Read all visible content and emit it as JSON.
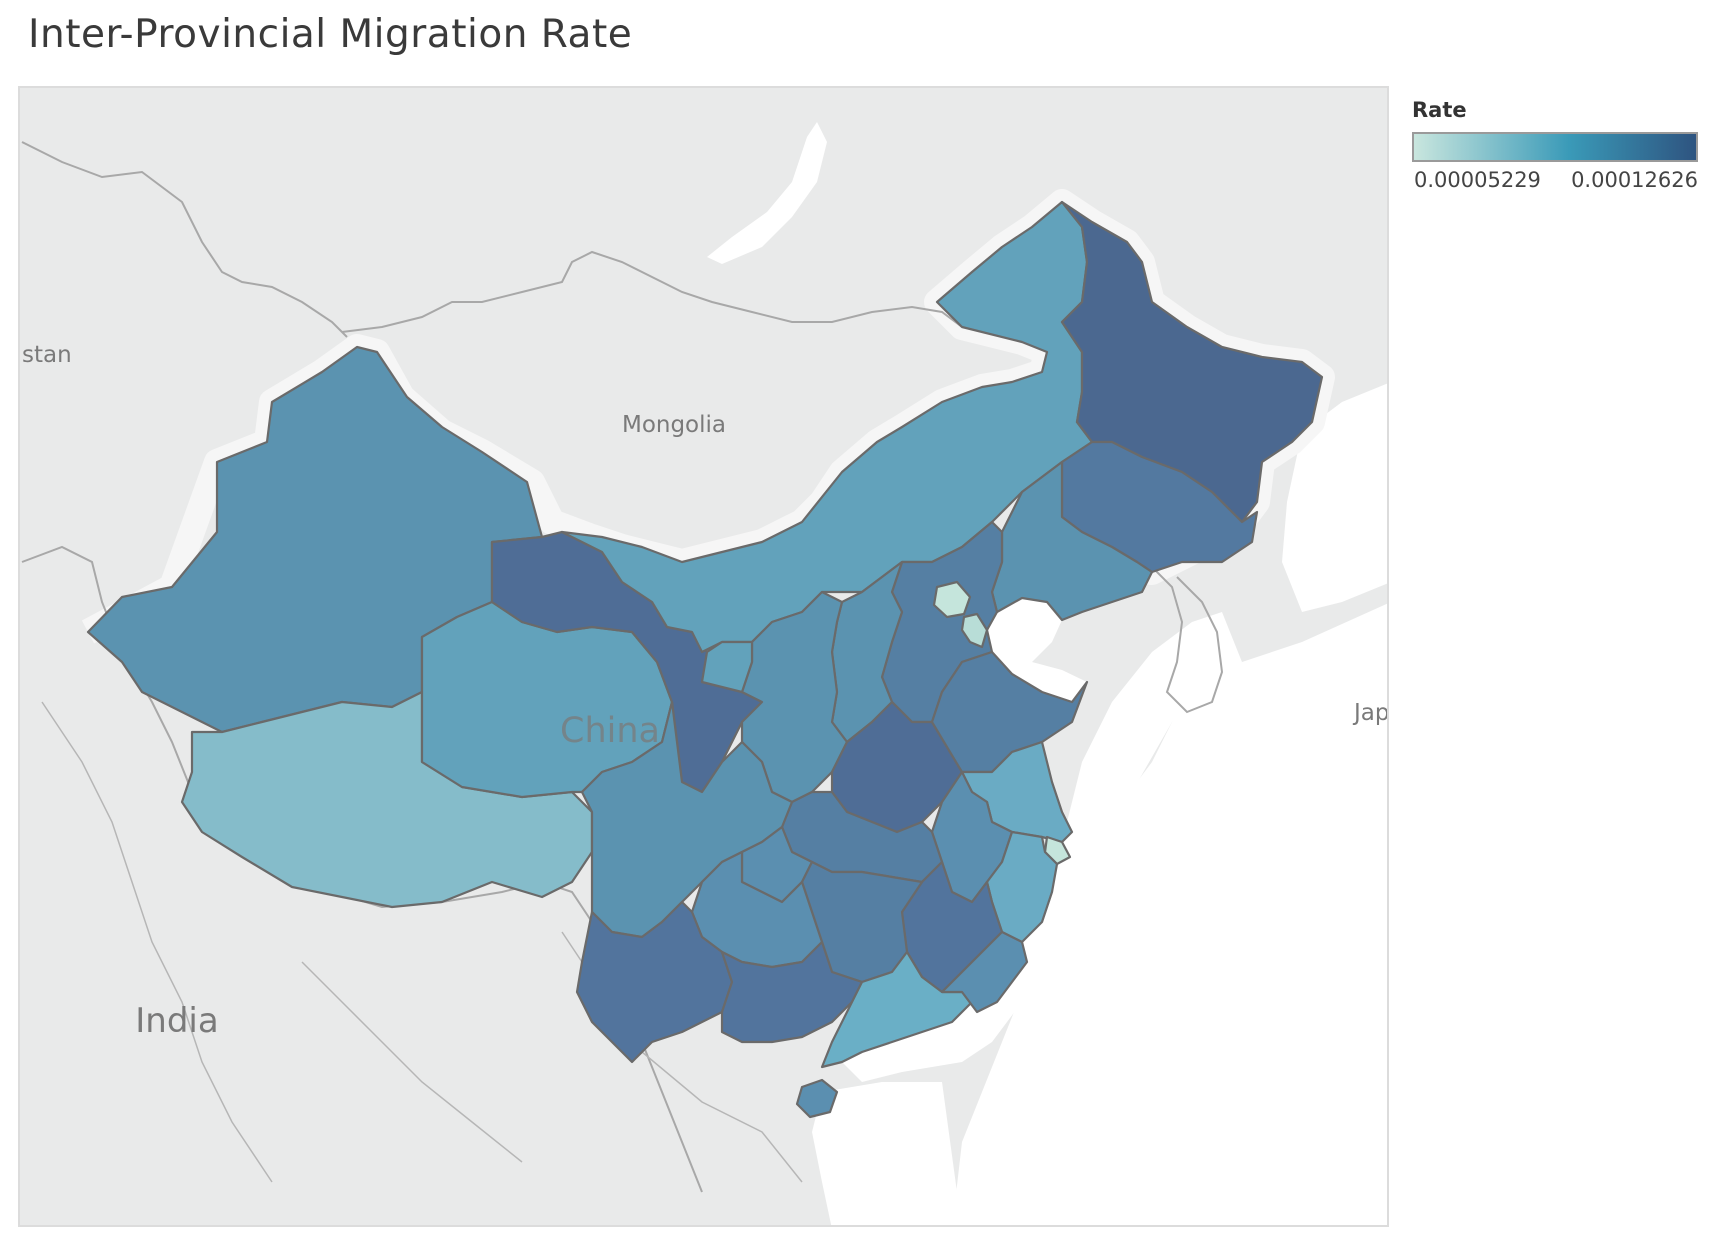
{
  "title": "Inter-Provincial Migration Rate",
  "legend": {
    "title": "Rate",
    "min_label": "0.00005229",
    "max_label": "0.00012626",
    "min_value": 5.229e-05,
    "max_value": 0.00012626,
    "color_low": "#c9e6de",
    "color_mid": "#3a9ab8",
    "color_high": "#2e5480"
  },
  "map": {
    "background_labels": {
      "mongolia": "Mongolia",
      "china": "China",
      "india": "India",
      "stan": "stan",
      "japan": "Jap"
    },
    "colors": {
      "land": "#e9eaea",
      "sea": "#ffffff",
      "border": "#6e6e6e",
      "country_border": "#a8a8a8"
    },
    "regions": [
      {
        "name": "Xinjiang",
        "color": "#5b93b0"
      },
      {
        "name": "Tibet",
        "color": "#85bcca"
      },
      {
        "name": "Qinghai",
        "color": "#62a2bb"
      },
      {
        "name": "Gansu",
        "color": "#4f6d96"
      },
      {
        "name": "Inner Mongolia",
        "color": "#62a2bb"
      },
      {
        "name": "Heilongjiang",
        "color": "#4b6890"
      },
      {
        "name": "Jilin",
        "color": "#5379a0"
      },
      {
        "name": "Liaoning",
        "color": "#5b93b0"
      },
      {
        "name": "Hebei",
        "color": "#557fa3"
      },
      {
        "name": "Beijing",
        "color": "#c5e5dc"
      },
      {
        "name": "Tianjin",
        "color": "#b8ddd7"
      },
      {
        "name": "Shanxi",
        "color": "#5b93b0"
      },
      {
        "name": "Shaanxi",
        "color": "#5b93b0"
      },
      {
        "name": "Ningxia",
        "color": "#62a2bb"
      },
      {
        "name": "Henan",
        "color": "#4f6d96"
      },
      {
        "name": "Shandong",
        "color": "#557fa3"
      },
      {
        "name": "Jiangsu",
        "color": "#6aabc4"
      },
      {
        "name": "Shanghai",
        "color": "#c5e5dc"
      },
      {
        "name": "Anhui",
        "color": "#5b8fb0"
      },
      {
        "name": "Hubei",
        "color": "#557fa3"
      },
      {
        "name": "Sichuan",
        "color": "#5b93b0"
      },
      {
        "name": "Chongqing",
        "color": "#5b8fb0"
      },
      {
        "name": "Zhejiang",
        "color": "#6aabc4"
      },
      {
        "name": "Jiangxi",
        "color": "#52749d"
      },
      {
        "name": "Hunan",
        "color": "#557fa3"
      },
      {
        "name": "Guizhou",
        "color": "#5b8fb0"
      },
      {
        "name": "Yunnan",
        "color": "#52749d"
      },
      {
        "name": "Guangxi",
        "color": "#52749d"
      },
      {
        "name": "Guangdong",
        "color": "#6aafc6"
      },
      {
        "name": "Fujian",
        "color": "#5b8fb0"
      },
      {
        "name": "Hainan",
        "color": "#5b8fb0"
      }
    ]
  }
}
